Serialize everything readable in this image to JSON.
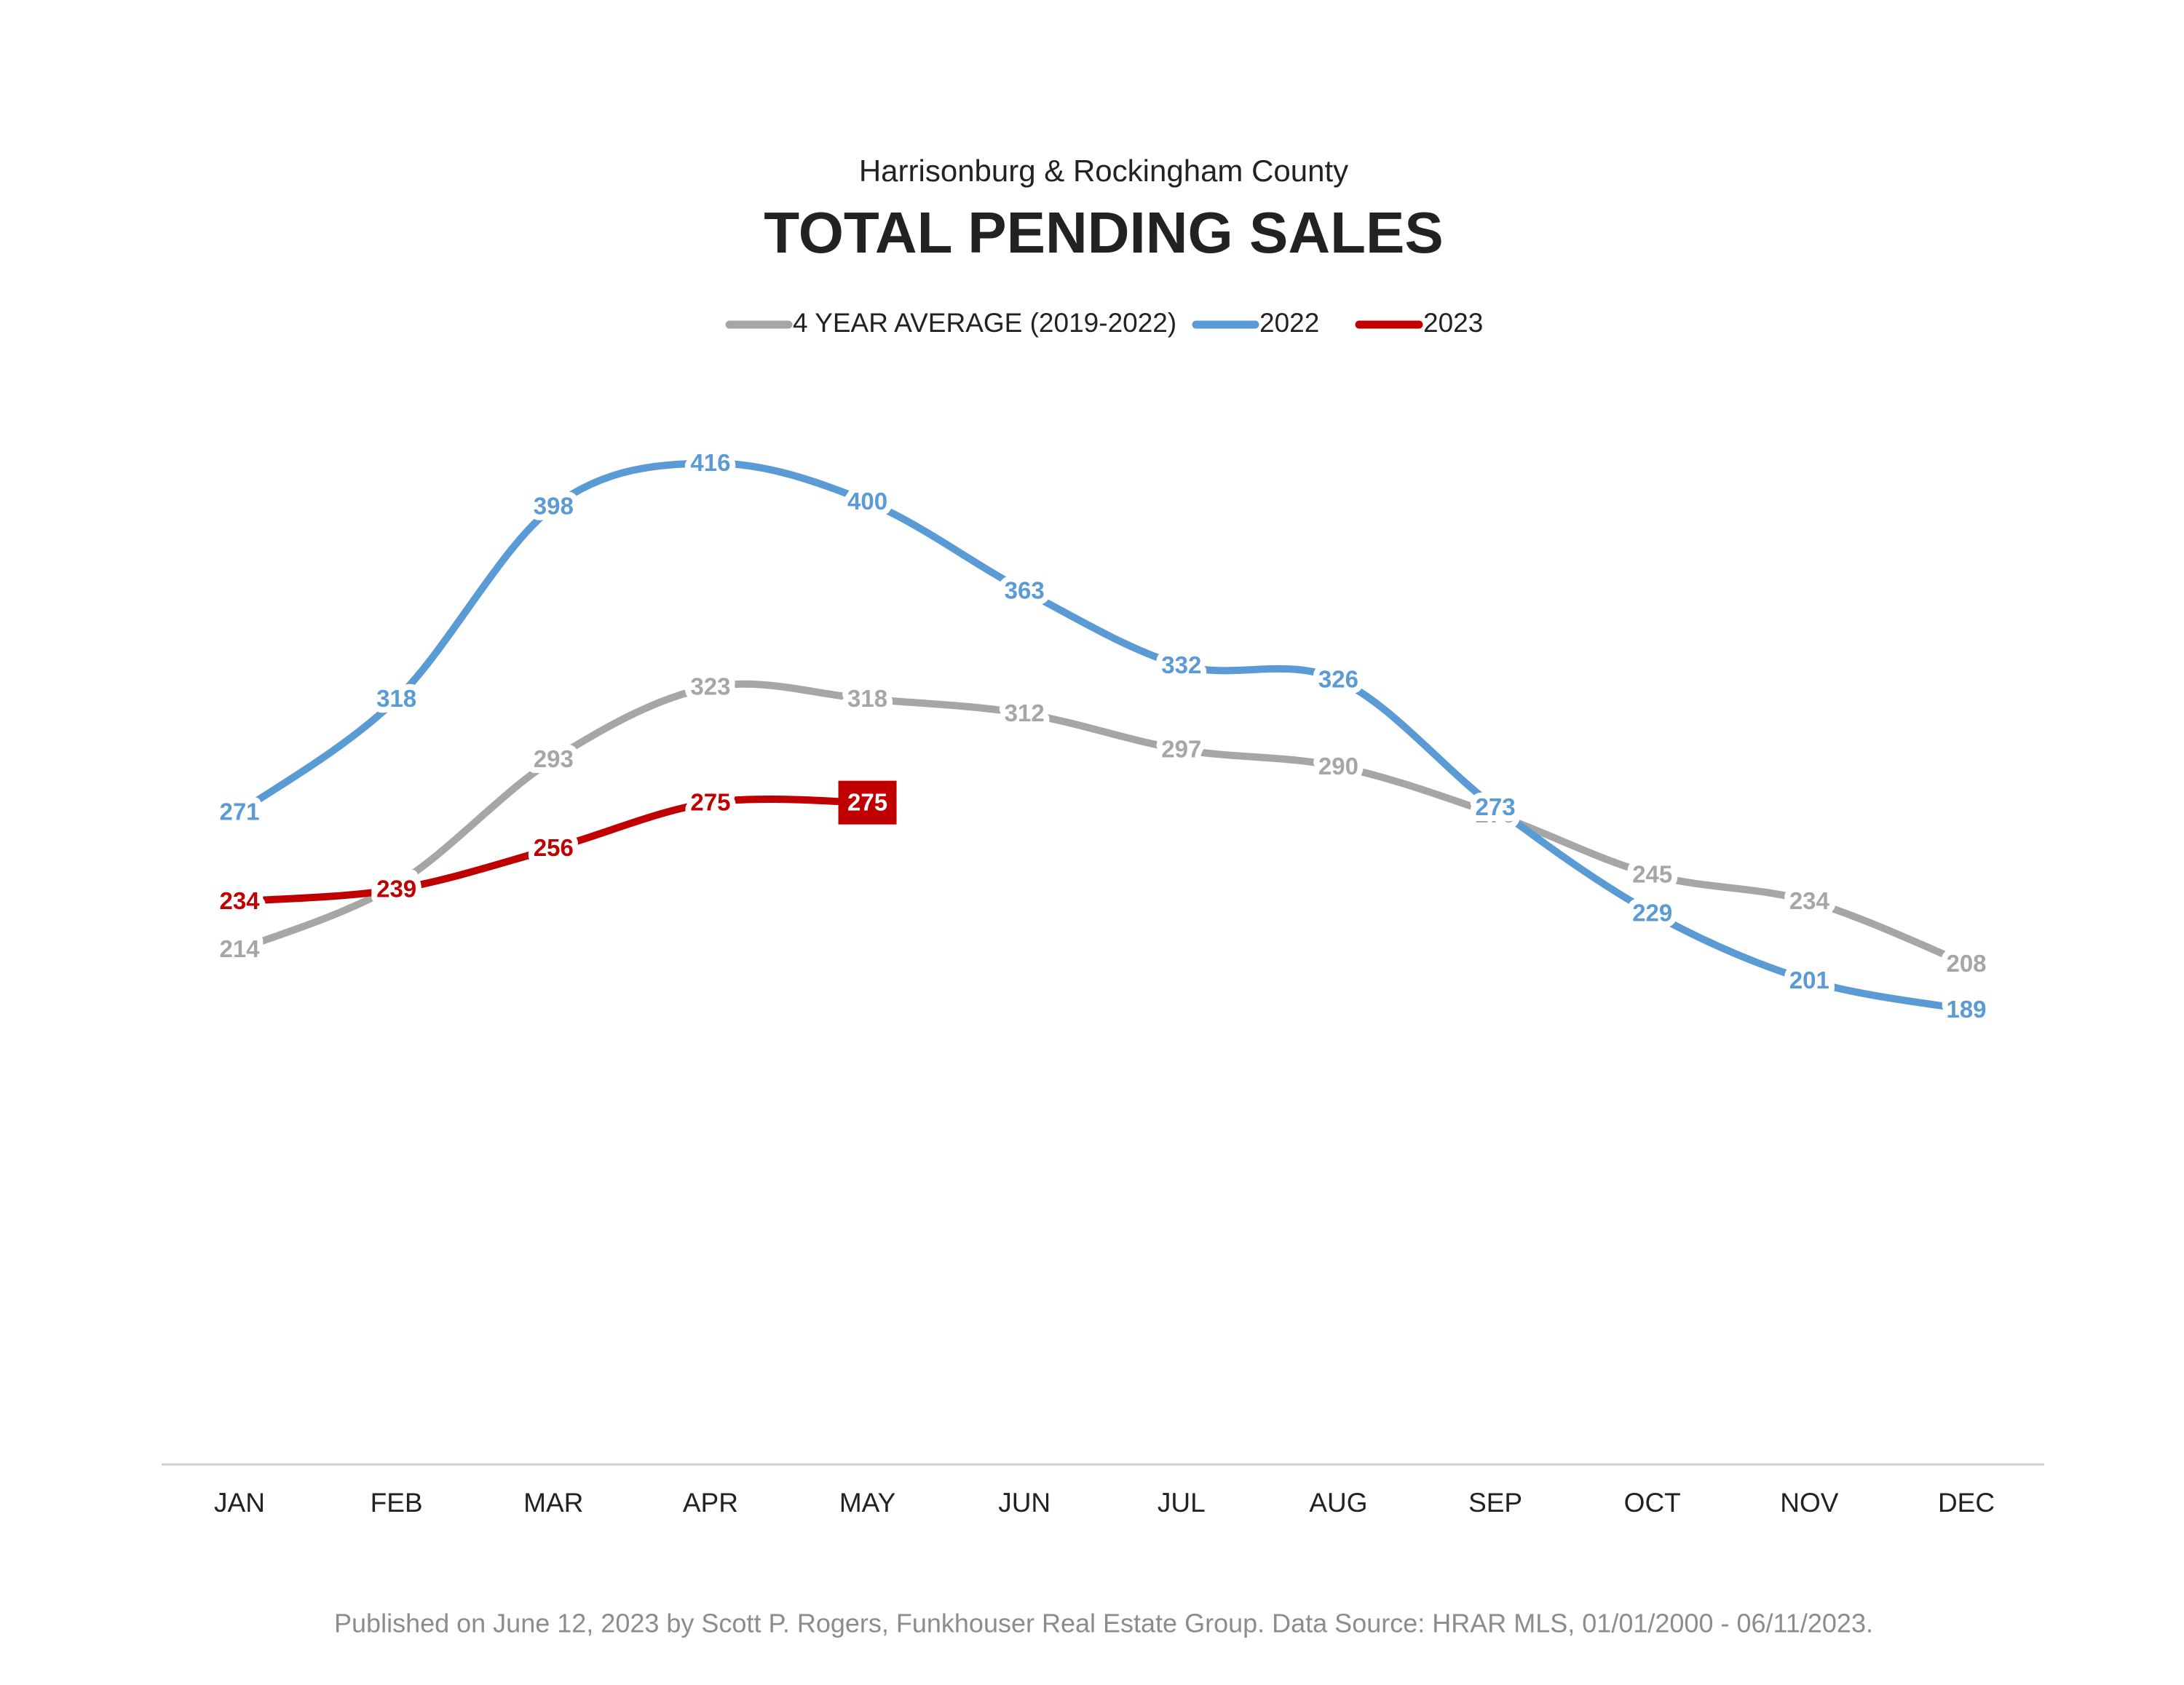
{
  "chart_data": {
    "type": "line",
    "subtitle": "Harrisonburg & Rockingham County",
    "title": "TOTAL PENDING SALES",
    "categories": [
      "JAN",
      "FEB",
      "MAR",
      "APR",
      "MAY",
      "JUN",
      "JUL",
      "AUG",
      "SEP",
      "OCT",
      "NOV",
      "DEC"
    ],
    "series": [
      {
        "name": "4 YEAR AVERAGE (2019-2022)",
        "color": "#a6a6a6",
        "values": [
          214,
          241,
          293,
          323,
          318,
          312,
          297,
          290,
          270,
          245,
          234,
          208
        ]
      },
      {
        "name": "2022",
        "color": "#5b9bd5",
        "values": [
          271,
          318,
          398,
          416,
          400,
          363,
          332,
          326,
          273,
          229,
          201,
          189
        ]
      },
      {
        "name": "2023",
        "color": "#c00000",
        "values": [
          234,
          239,
          256,
          275,
          275,
          null,
          null,
          null,
          null,
          null,
          null,
          null
        ]
      }
    ],
    "ylim": [
      0,
      450
    ],
    "footer": "Published on June 12, 2023 by Scott P. Rogers, Funkhouser Real Estate Group. Data Source: HRAR MLS, 01/01/2000 - 06/11/2023."
  }
}
